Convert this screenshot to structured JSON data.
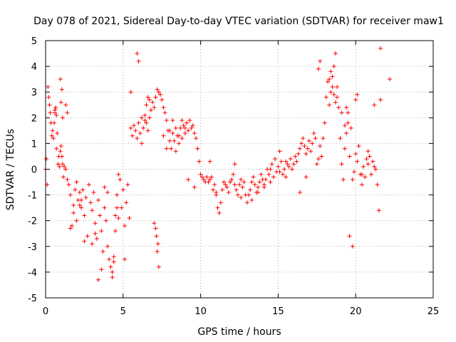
{
  "chart_data": {
    "type": "scatter",
    "title": "Day 078 of 2021, Sidereal Day-to-day VTEC variation (SDTVAR) for receiver maw1",
    "xlabel": "GPS time / hours",
    "ylabel": "SDTVAR / TECUs",
    "xlim": [
      0,
      25
    ],
    "ylim": [
      -5,
      5
    ],
    "xticks": [
      0,
      5,
      10,
      15,
      20,
      25
    ],
    "yticks": [
      -5,
      -4,
      -3,
      -2,
      -1,
      0,
      1,
      2,
      3,
      4,
      5
    ],
    "grid": true,
    "marker": "+",
    "color": "#ff0000",
    "series": [
      {
        "name": "SDTVAR",
        "x": [
          0.0,
          0.05,
          0.1,
          0.15,
          0.2,
          0.25,
          0.3,
          0.35,
          0.4,
          0.45,
          0.5,
          0.55,
          0.6,
          0.65,
          0.7,
          0.75,
          0.8,
          0.85,
          0.9,
          0.95,
          1.0,
          1.05,
          1.1,
          1.15,
          1.2,
          1.3,
          1.4,
          1.5,
          1.6,
          1.7,
          1.8,
          1.9,
          2.0,
          2.1,
          2.2,
          2.3,
          2.4,
          2.5,
          2.6,
          2.7,
          2.8,
          2.9,
          3.0,
          3.1,
          3.2,
          3.3,
          3.4,
          3.5,
          3.6,
          3.7,
          3.8,
          3.9,
          4.0,
          4.1,
          4.2,
          4.3,
          4.4,
          4.5,
          4.6,
          4.7,
          4.8,
          4.9,
          5.0,
          5.1,
          5.2,
          5.3,
          5.4,
          5.5,
          5.6,
          5.7,
          5.8,
          5.9,
          6.0,
          6.1,
          6.2,
          6.3,
          6.4,
          6.5,
          6.6,
          6.7,
          6.8,
          6.9,
          7.0,
          7.1,
          7.2,
          7.3,
          7.4,
          7.5,
          7.6,
          7.7,
          7.8,
          7.9,
          8.0,
          8.1,
          8.2,
          8.3,
          8.4,
          8.5,
          8.6,
          8.7,
          8.8,
          8.9,
          9.0,
          9.1,
          9.2,
          9.3,
          9.4,
          9.5,
          9.6,
          9.7,
          9.8,
          9.9,
          10.0,
          10.1,
          10.2,
          10.3,
          10.4,
          10.5,
          10.6,
          10.7,
          10.8,
          10.9,
          11.0,
          11.1,
          11.2,
          11.3,
          11.4,
          11.5,
          11.6,
          11.7,
          11.8,
          11.9,
          12.0,
          12.1,
          12.2,
          12.3,
          12.4,
          12.5,
          12.6,
          12.7,
          12.8,
          12.9,
          13.0,
          13.1,
          13.2,
          13.3,
          13.4,
          13.5,
          13.6,
          13.7,
          13.8,
          13.9,
          14.0,
          14.1,
          14.2,
          14.3,
          14.4,
          14.5,
          14.6,
          14.7,
          14.8,
          14.9,
          15.0,
          15.1,
          15.2,
          15.3,
          15.4,
          15.5,
          15.6,
          15.7,
          15.8,
          15.9,
          16.0,
          16.1,
          16.2,
          16.3,
          16.4,
          16.5,
          16.6,
          16.7,
          16.8,
          16.9,
          17.0,
          17.1,
          17.2,
          17.3,
          17.4,
          17.5,
          17.6,
          17.7,
          17.8,
          17.9,
          18.0,
          18.1,
          18.2,
          18.3,
          18.4,
          18.5,
          18.6,
          18.7,
          18.8,
          18.9,
          19.0,
          19.1,
          19.2,
          19.3,
          19.4,
          19.5,
          19.6,
          19.7,
          19.8,
          19.9,
          20.0,
          20.1,
          20.2,
          20.3,
          20.4,
          20.5,
          20.6,
          20.7,
          20.8,
          20.9,
          21.0,
          21.1,
          21.2,
          21.3,
          21.4,
          21.5,
          21.6,
          22.2,
          0.95,
          1.05,
          5.5,
          7.2,
          7.3,
          5.1,
          5.9,
          6.0,
          17.6,
          17.7,
          18.3,
          18.4,
          18.7,
          18.8,
          19.1,
          19.3,
          19.6,
          19.8,
          2.3,
          2.5,
          3.4,
          3.6,
          4.3,
          4.4,
          4.5,
          4.6,
          4.7,
          1.6,
          1.8,
          2.0,
          2.2,
          3.0,
          3.2,
          3.8,
          4.0,
          6.2,
          6.4,
          9.2,
          9.6,
          10.6,
          11.0,
          12.2,
          12.6,
          13.3,
          13.7,
          14.1,
          14.5,
          15.1,
          15.5,
          16.4,
          16.8,
          20.4,
          20.8,
          21.2,
          21.6,
          0.6,
          0.7,
          1.0,
          1.1,
          1.3,
          1.4,
          18.5,
          18.6,
          19.4,
          19.5,
          20.0,
          20.1,
          6.5,
          6.6,
          6.7,
          6.8,
          7.6,
          7.8,
          8.0,
          8.2,
          8.4,
          8.6,
          8.8,
          9.0,
          7.0,
          7.1,
          7.15,
          7.25
        ],
        "y": [
          0.0,
          0.4,
          -0.6,
          3.2,
          2.8,
          2.5,
          2.2,
          1.8,
          1.3,
          1.5,
          1.2,
          1.8,
          2.2,
          2.4,
          0.8,
          1.4,
          0.2,
          0.5,
          0.1,
          0.7,
          0.9,
          0.5,
          0.2,
          -0.3,
          0.1,
          0.0,
          -0.4,
          -0.6,
          -1.0,
          -2.2,
          -1.4,
          -0.8,
          -0.5,
          -1.2,
          -0.9,
          -1.5,
          -0.8,
          -1.8,
          -1.1,
          -2.6,
          -0.6,
          -1.3,
          -1.6,
          -0.9,
          -2.1,
          -2.7,
          -1.2,
          -1.8,
          -2.4,
          -3.2,
          -1.5,
          -2.0,
          -3.0,
          -3.5,
          -3.8,
          -4.2,
          -3.6,
          -1.8,
          -1.0,
          -0.2,
          -0.4,
          -1.5,
          -0.8,
          -2.2,
          -1.3,
          -0.6,
          -1.9,
          1.6,
          1.3,
          1.7,
          1.5,
          1.2,
          1.8,
          1.4,
          1.0,
          1.6,
          2.1,
          1.8,
          1.5,
          2.0,
          2.3,
          2.6,
          2.4,
          2.8,
          3.1,
          3.0,
          2.9,
          2.7,
          2.4,
          2.2,
          1.9,
          1.5,
          1.1,
          0.8,
          1.4,
          1.1,
          0.7,
          1.3,
          1.0,
          1.6,
          1.2,
          1.7,
          1.4,
          1.8,
          1.5,
          1.9,
          1.6,
          1.7,
          1.4,
          1.2,
          0.8,
          0.3,
          -0.2,
          -0.3,
          -0.4,
          -0.5,
          -0.3,
          -0.5,
          -0.4,
          -0.3,
          -0.8,
          -0.6,
          -1.0,
          -1.5,
          -1.7,
          -1.3,
          -0.8,
          -0.5,
          -0.6,
          -0.7,
          -0.9,
          -0.5,
          -0.4,
          -0.2,
          0.2,
          -0.8,
          -1.0,
          -0.6,
          -0.4,
          -0.7,
          -0.5,
          -1.0,
          -1.3,
          -1.0,
          -0.8,
          -0.5,
          -0.3,
          -0.6,
          -0.9,
          -0.7,
          -0.5,
          -0.2,
          -0.4,
          -0.7,
          -0.4,
          0.0,
          -0.2,
          -0.5,
          0.2,
          -0.3,
          0.4,
          -0.1,
          0.1,
          -0.1,
          0.3,
          -0.2,
          0.0,
          -0.3,
          0.2,
          0.1,
          0.4,
          0.0,
          0.2,
          0.5,
          0.3,
          0.6,
          0.8,
          1.0,
          1.2,
          0.9,
          0.6,
          0.8,
          1.1,
          0.7,
          1.0,
          1.4,
          1.2,
          0.2,
          0.4,
          0.9,
          0.5,
          1.2,
          1.8,
          2.8,
          3.4,
          2.5,
          3.0,
          3.6,
          4.0,
          2.6,
          3.2,
          2.4,
          1.2,
          0.2,
          -0.4,
          0.8,
          1.4,
          1.8,
          0.5,
          1.6,
          -0.4,
          -0.1,
          0.6,
          0.3,
          0.9,
          -0.2,
          -0.6,
          0.1,
          -0.3,
          0.4,
          0.2,
          0.5,
          -0.2,
          0.3,
          0.1,
          0.0,
          -0.6,
          -1.6,
          4.7,
          3.5,
          3.5,
          3.1,
          3.0,
          -3.2,
          -3.8,
          -3.5,
          4.5,
          4.2,
          3.9,
          4.2,
          3.5,
          3.8,
          4.5,
          2.8,
          2.2,
          1.7,
          -2.6,
          -3.0,
          -1.2,
          -2.8,
          -4.3,
          -3.9,
          -4.0,
          -3.4,
          -2.4,
          -1.5,
          -1.9,
          -2.3,
          -1.7,
          -2.0,
          -1.4,
          -2.9,
          -2.5,
          -0.7,
          -0.9,
          2.0,
          1.9,
          -0.4,
          -0.7,
          0.3,
          -0.9,
          -0.6,
          -1.1,
          -1.2,
          -0.9,
          -0.6,
          0.0,
          0.7,
          0.3,
          -0.9,
          -0.3,
          -0.2,
          0.7,
          2.5,
          2.7,
          2.3,
          2.1,
          2.6,
          2.0,
          2.5,
          2.2,
          3.2,
          2.9,
          2.4,
          2.2,
          2.7,
          2.9,
          2.5,
          2.8,
          2.7,
          2.3,
          1.3,
          0.8,
          1.5,
          1.9,
          1.6,
          1.3,
          1.9,
          1.6,
          -2.1,
          -2.3,
          -2.6,
          -2.9
        ]
      }
    ]
  }
}
